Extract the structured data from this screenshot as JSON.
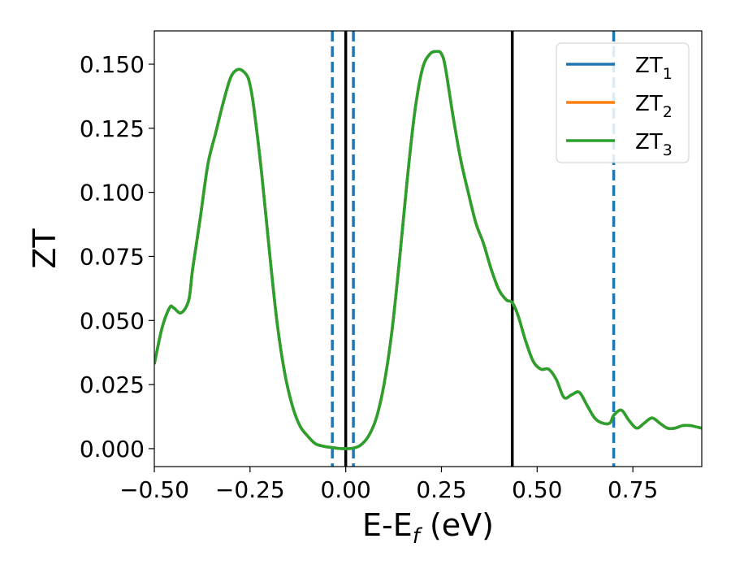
{
  "chart_data": {
    "type": "line",
    "xlabel": {
      "main": "E-E",
      "sub": "f",
      "suffix": " (eV)"
    },
    "ylabel": "ZT",
    "xlim": [
      -0.5,
      0.93
    ],
    "ylim": [
      -0.007,
      0.163
    ],
    "xticks": [
      -0.5,
      -0.25,
      0.0,
      0.25,
      0.5,
      0.75
    ],
    "xtick_labels": [
      "−0.50",
      "−0.25",
      "0.00",
      "0.25",
      "0.50",
      "0.75"
    ],
    "yticks": [
      0.0,
      0.025,
      0.05,
      0.075,
      0.1,
      0.125,
      0.15
    ],
    "ytick_labels": [
      "0.000",
      "0.025",
      "0.050",
      "0.075",
      "0.100",
      "0.125",
      "0.150"
    ],
    "grid": false,
    "legend_position": "top-right",
    "x": [
      -0.5,
      -0.48,
      -0.46,
      -0.45,
      -0.43,
      -0.41,
      -0.4,
      -0.38,
      -0.36,
      -0.34,
      -0.32,
      -0.3,
      -0.28,
      -0.26,
      -0.25,
      -0.24,
      -0.22,
      -0.2,
      -0.18,
      -0.16,
      -0.14,
      -0.12,
      -0.1,
      -0.08,
      -0.06,
      -0.04,
      -0.02,
      0.0,
      0.02,
      0.04,
      0.06,
      0.08,
      0.1,
      0.12,
      0.14,
      0.16,
      0.18,
      0.2,
      0.22,
      0.24,
      0.25,
      0.26,
      0.28,
      0.3,
      0.32,
      0.34,
      0.36,
      0.38,
      0.4,
      0.42,
      0.435,
      0.45,
      0.47,
      0.49,
      0.51,
      0.53,
      0.55,
      0.57,
      0.59,
      0.61,
      0.63,
      0.65,
      0.67,
      0.69,
      0.7,
      0.72,
      0.74,
      0.76,
      0.78,
      0.8,
      0.82,
      0.84,
      0.86,
      0.88,
      0.9,
      0.93
    ],
    "series": [
      {
        "name": {
          "main": "ZT",
          "sub": "1"
        },
        "color": "#1f77b4",
        "y": [
          0.033,
          0.047,
          0.055,
          0.055,
          0.053,
          0.058,
          0.07,
          0.09,
          0.111,
          0.123,
          0.135,
          0.145,
          0.148,
          0.146,
          0.142,
          0.133,
          0.108,
          0.078,
          0.05,
          0.03,
          0.017,
          0.009,
          0.005,
          0.002,
          0.001,
          0.0005,
          0.0001,
          0.0,
          0.0002,
          0.0015,
          0.005,
          0.012,
          0.025,
          0.045,
          0.073,
          0.104,
          0.131,
          0.148,
          0.154,
          0.155,
          0.154,
          0.149,
          0.13,
          0.113,
          0.1,
          0.088,
          0.08,
          0.07,
          0.062,
          0.058,
          0.057,
          0.052,
          0.042,
          0.034,
          0.031,
          0.031,
          0.027,
          0.02,
          0.021,
          0.022,
          0.017,
          0.012,
          0.01,
          0.01,
          0.013,
          0.015,
          0.011,
          0.008,
          0.01,
          0.012,
          0.01,
          0.008,
          0.008,
          0.009,
          0.009,
          0.008
        ]
      },
      {
        "name": {
          "main": "ZT",
          "sub": "2"
        },
        "color": "#ff7f0e",
        "y": [
          0.033,
          0.047,
          0.055,
          0.055,
          0.053,
          0.058,
          0.07,
          0.09,
          0.111,
          0.123,
          0.135,
          0.145,
          0.148,
          0.146,
          0.142,
          0.133,
          0.108,
          0.078,
          0.05,
          0.03,
          0.017,
          0.009,
          0.005,
          0.002,
          0.001,
          0.0005,
          0.0001,
          0.0,
          0.0002,
          0.0015,
          0.005,
          0.012,
          0.025,
          0.045,
          0.073,
          0.104,
          0.131,
          0.148,
          0.154,
          0.155,
          0.154,
          0.149,
          0.13,
          0.113,
          0.1,
          0.088,
          0.08,
          0.07,
          0.062,
          0.058,
          0.057,
          0.052,
          0.042,
          0.034,
          0.031,
          0.031,
          0.027,
          0.02,
          0.021,
          0.022,
          0.017,
          0.012,
          0.01,
          0.01,
          0.013,
          0.015,
          0.011,
          0.008,
          0.01,
          0.012,
          0.01,
          0.008,
          0.008,
          0.009,
          0.009,
          0.008
        ]
      },
      {
        "name": {
          "main": "ZT",
          "sub": "3"
        },
        "color": "#2ca02c",
        "y": [
          0.033,
          0.047,
          0.055,
          0.055,
          0.053,
          0.058,
          0.07,
          0.09,
          0.111,
          0.123,
          0.135,
          0.145,
          0.148,
          0.146,
          0.142,
          0.133,
          0.108,
          0.078,
          0.05,
          0.03,
          0.017,
          0.009,
          0.005,
          0.002,
          0.001,
          0.0005,
          0.0001,
          0.0,
          0.0002,
          0.0015,
          0.005,
          0.012,
          0.025,
          0.045,
          0.073,
          0.104,
          0.131,
          0.148,
          0.154,
          0.155,
          0.154,
          0.149,
          0.13,
          0.113,
          0.1,
          0.088,
          0.08,
          0.07,
          0.062,
          0.058,
          0.057,
          0.052,
          0.042,
          0.034,
          0.031,
          0.031,
          0.027,
          0.02,
          0.021,
          0.022,
          0.017,
          0.012,
          0.01,
          0.01,
          0.013,
          0.015,
          0.011,
          0.008,
          0.01,
          0.012,
          0.01,
          0.008,
          0.008,
          0.009,
          0.009,
          0.008
        ]
      }
    ],
    "vlines": [
      {
        "x": -0.035,
        "color": "#1f77b4",
        "style": "dashed"
      },
      {
        "x": 0.0,
        "color": "#000000",
        "style": "solid"
      },
      {
        "x": 0.02,
        "color": "#1f77b4",
        "style": "dashed"
      },
      {
        "x": 0.435,
        "color": "#000000",
        "style": "solid"
      },
      {
        "x": 0.7,
        "color": "#1f77b4",
        "style": "dashed"
      }
    ]
  }
}
